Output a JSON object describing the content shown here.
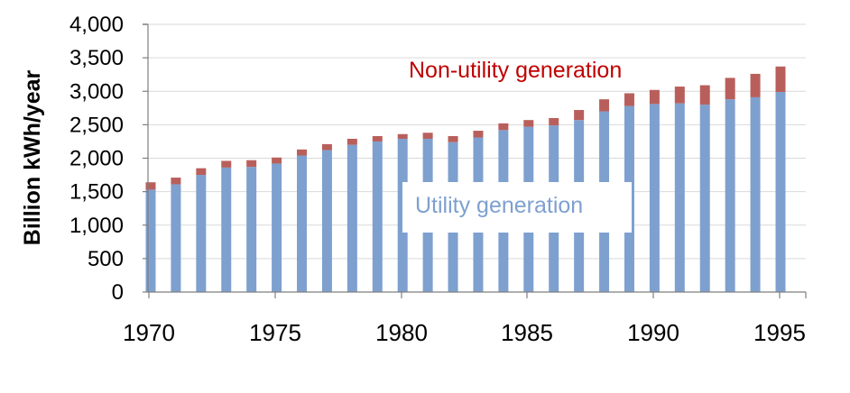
{
  "chart_data": {
    "type": "bar",
    "stacked": true,
    "title": "",
    "xlabel": "",
    "ylabel": "Billion kWh/year",
    "ylim": [
      0,
      4000
    ],
    "yticks": [
      0,
      500,
      1000,
      1500,
      2000,
      2500,
      3000,
      3500,
      4000
    ],
    "ytick_labels": [
      "0",
      "500",
      "1,000",
      "1,500",
      "2,000",
      "2,500",
      "3,000",
      "3,500",
      "4,000"
    ],
    "xticks": [
      "1970",
      "1975",
      "1980",
      "1985",
      "1990",
      "1995"
    ],
    "grid": true,
    "legend": "none",
    "categories": [
      1970,
      1971,
      1972,
      1973,
      1974,
      1975,
      1976,
      1977,
      1978,
      1979,
      1980,
      1981,
      1982,
      1983,
      1984,
      1985,
      1986,
      1987,
      1988,
      1989,
      1990,
      1991,
      1992,
      1993,
      1994,
      1995
    ],
    "series": [
      {
        "name": "Utility generation",
        "color": "#7ea0cf",
        "values": [
          1530,
          1610,
          1750,
          1860,
          1870,
          1920,
          2040,
          2120,
          2200,
          2250,
          2290,
          2290,
          2240,
          2310,
          2420,
          2470,
          2490,
          2570,
          2700,
          2780,
          2810,
          2820,
          2800,
          2880,
          2910,
          2990
        ]
      },
      {
        "name": "Non-utility generation",
        "color": "#b95f5b",
        "values": [
          110,
          100,
          100,
          100,
          100,
          90,
          90,
          90,
          90,
          80,
          70,
          90,
          90,
          100,
          100,
          100,
          110,
          150,
          180,
          190,
          210,
          250,
          290,
          320,
          350,
          380
        ]
      }
    ],
    "annotations": [
      {
        "text": "Non-utility generation",
        "color": "#c00000"
      },
      {
        "text": "Utility generation",
        "color": "#7ea0cf"
      }
    ]
  }
}
